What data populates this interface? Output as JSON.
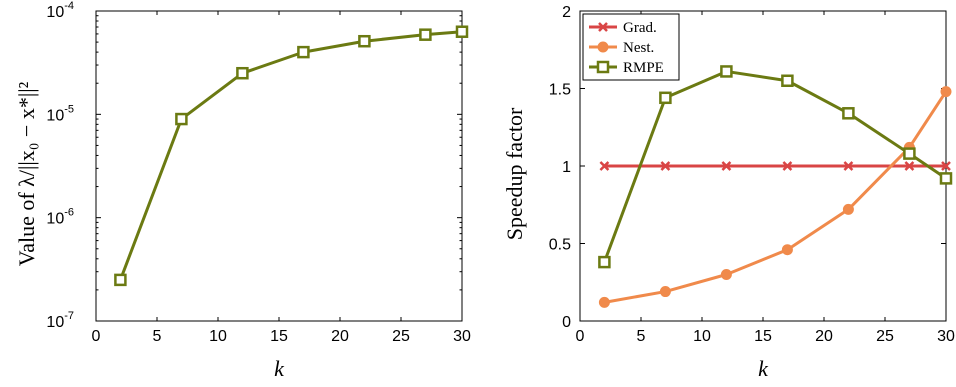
{
  "chart_data": [
    {
      "type": "line",
      "xlabel": "k",
      "ylabel": "Value of λ/||x₀ − x*||²",
      "xlim": [
        0,
        30
      ],
      "ylim": [
        1e-07,
        0.0001
      ],
      "yscale": "log",
      "grid": false,
      "xticks": [
        0,
        5,
        10,
        15,
        20,
        25,
        30
      ],
      "yticks": [
        {
          "value": 1e-07,
          "base": "10",
          "exp": "-7"
        },
        {
          "value": 1e-06,
          "base": "10",
          "exp": "-6"
        },
        {
          "value": 1e-05,
          "base": "10",
          "exp": "-5"
        },
        {
          "value": 0.0001,
          "base": "10",
          "exp": "-4"
        }
      ],
      "x": [
        2,
        7,
        12,
        17,
        22,
        27,
        30
      ],
      "series": [
        {
          "color": "#6b7a12",
          "marker": "square",
          "values": [
            2.5e-07,
            9e-06,
            2.5e-05,
            4e-05,
            5.1e-05,
            5.9e-05,
            6.3e-05
          ]
        }
      ]
    },
    {
      "type": "line",
      "xlabel": "k",
      "ylabel": "Speedup factor",
      "xlim": [
        0,
        30
      ],
      "ylim": [
        0,
        2
      ],
      "yscale": "linear",
      "grid": false,
      "legend_position": "top-left",
      "xticks": [
        0,
        5,
        10,
        15,
        20,
        25,
        30
      ],
      "yticks": [
        "0",
        "0.5",
        "1",
        "1.5",
        "2"
      ],
      "x": [
        2,
        7,
        12,
        17,
        22,
        27,
        30
      ],
      "series": [
        {
          "name": "Grad.",
          "color": "#d94545",
          "marker": "x",
          "values": [
            1,
            1,
            1,
            1,
            1,
            1,
            1
          ]
        },
        {
          "name": "Nest.",
          "color": "#f08a4b",
          "marker": "circle",
          "values": [
            0.12,
            0.19,
            0.3,
            0.46,
            0.72,
            1.12,
            1.48
          ]
        },
        {
          "name": "RMPE",
          "color": "#6b7a12",
          "marker": "square",
          "values": [
            0.38,
            1.44,
            1.61,
            1.55,
            1.34,
            1.08,
            0.92
          ]
        }
      ]
    }
  ]
}
